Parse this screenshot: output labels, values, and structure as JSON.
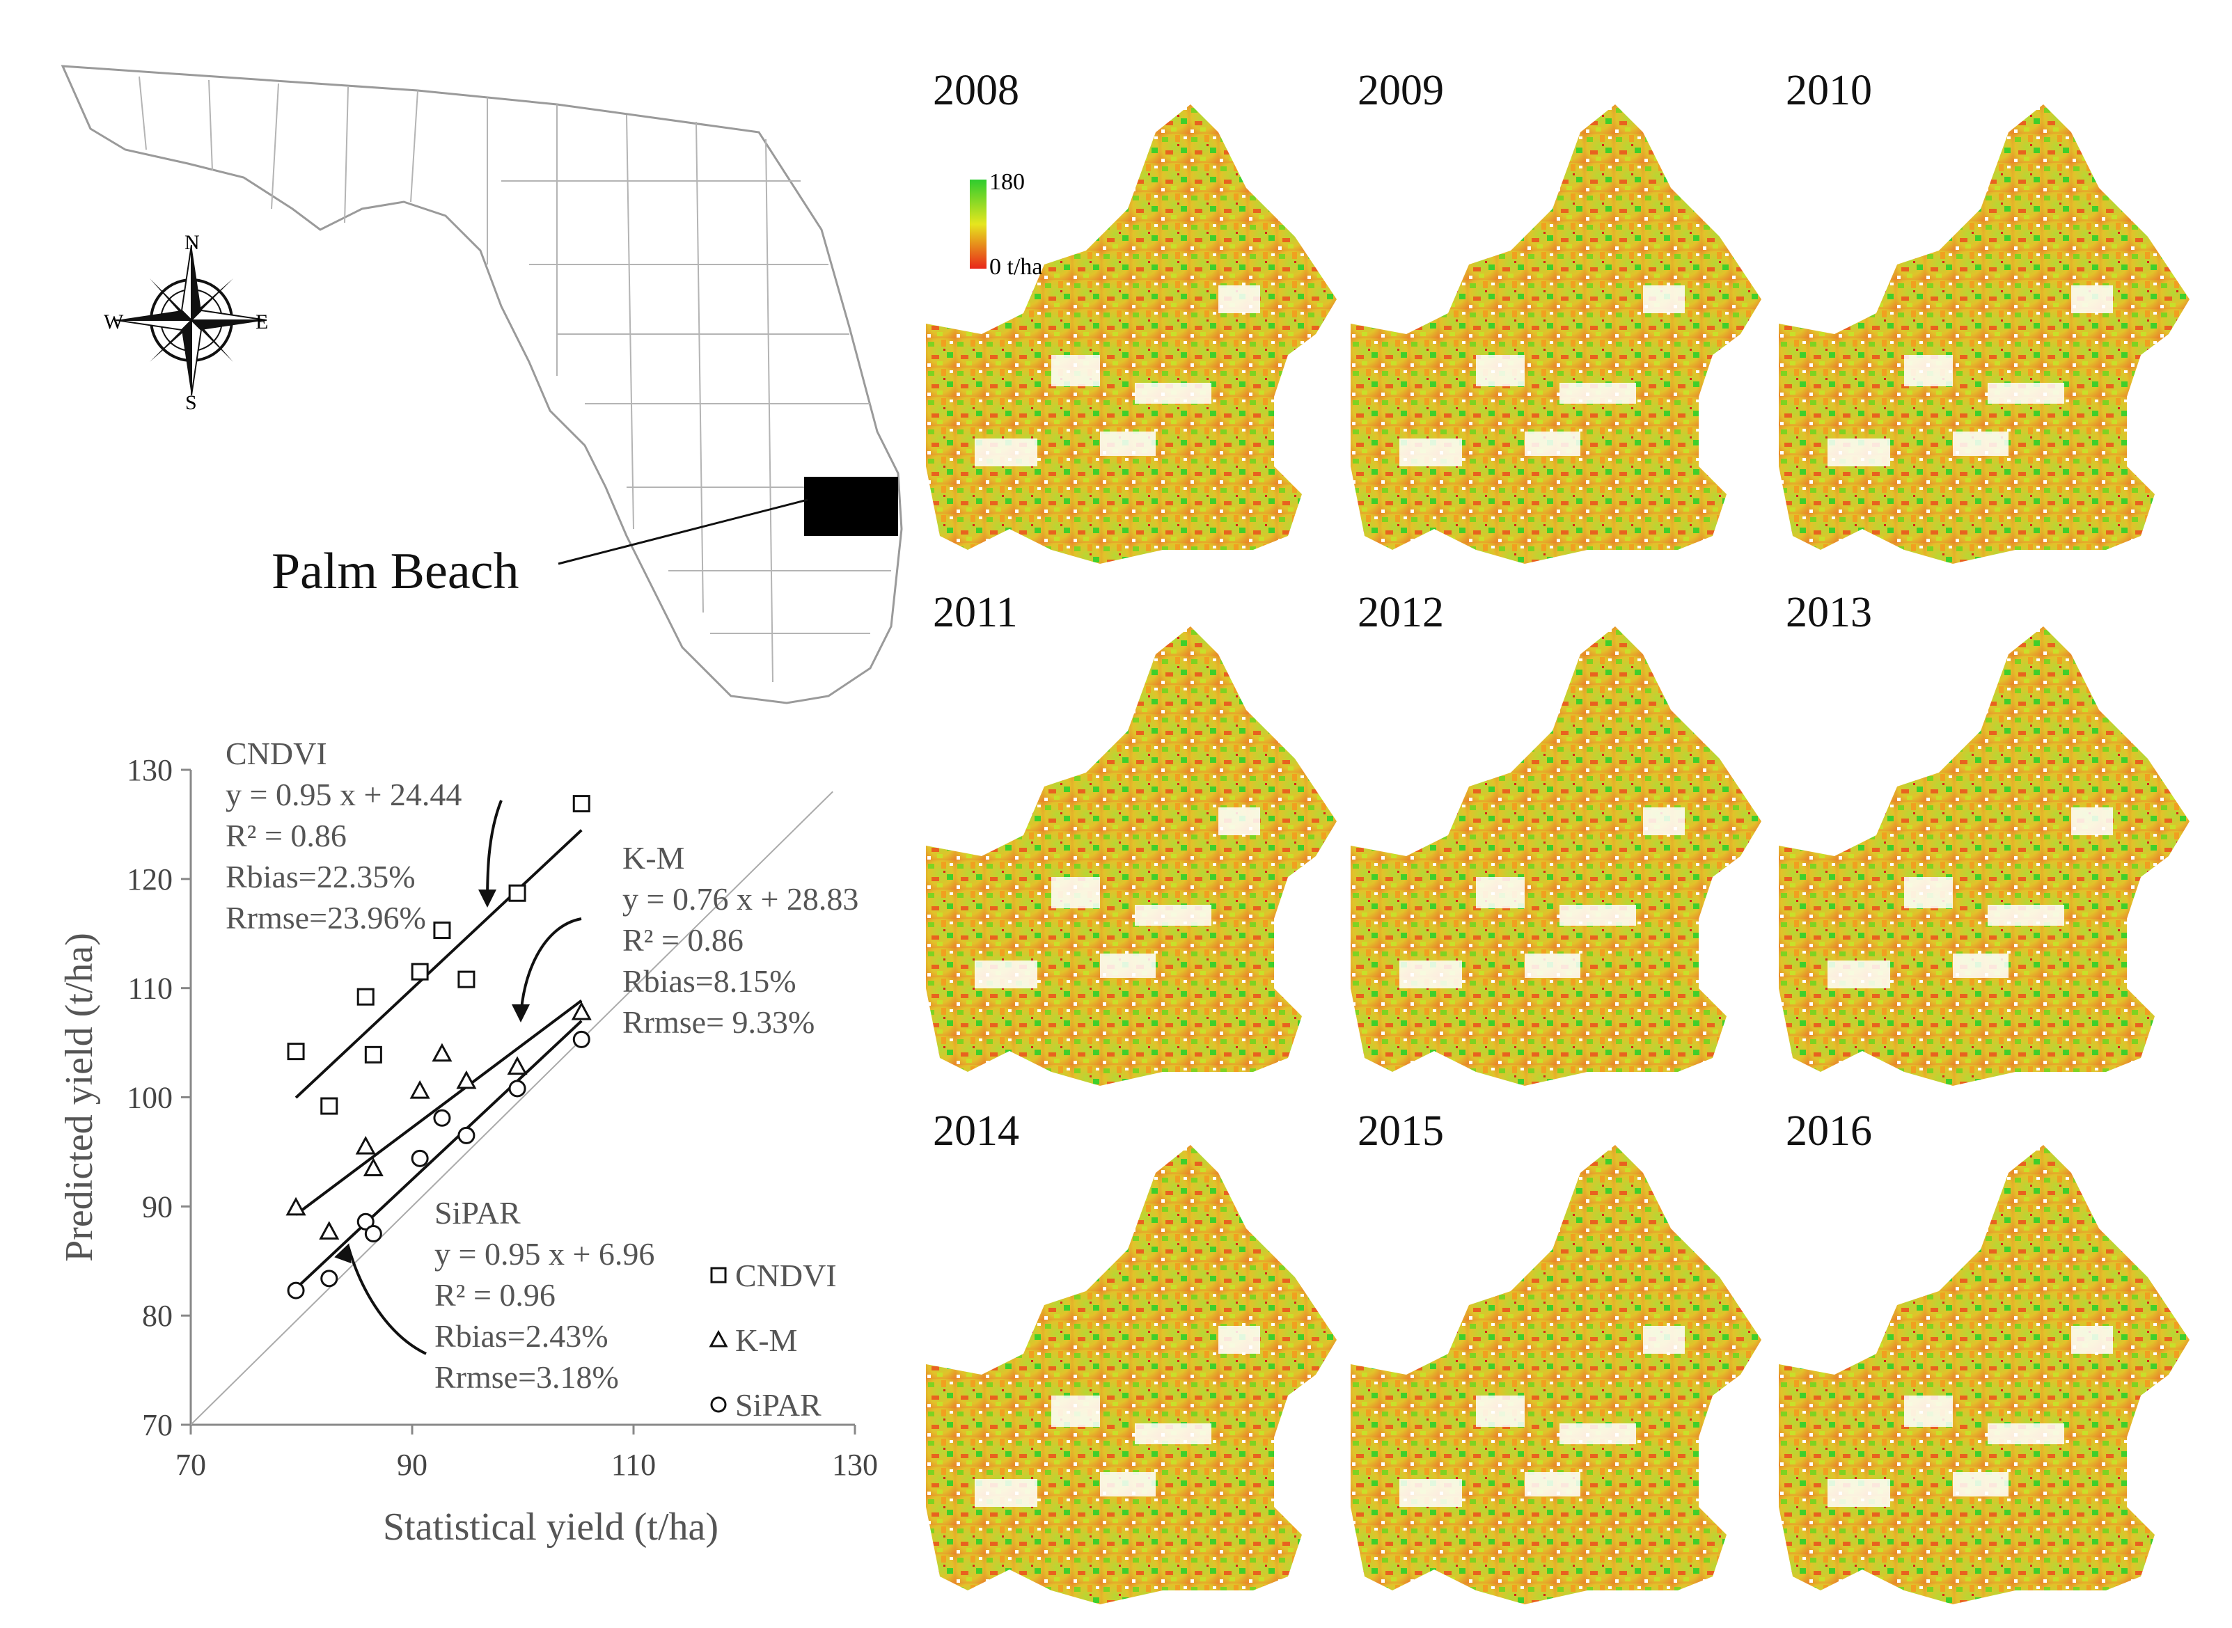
{
  "map": {
    "county_label": "Palm Beach",
    "compass": {
      "n": "N",
      "s": "S",
      "e": "E",
      "w": "W"
    }
  },
  "legend_scale": {
    "max_label": "180",
    "min_label": "0 t/ha",
    "high_color": "#2ecc2e",
    "low_color": "#e8261a"
  },
  "year_panels": [
    {
      "year": "2008"
    },
    {
      "year": "2009"
    },
    {
      "year": "2010"
    },
    {
      "year": "2011"
    },
    {
      "year": "2012"
    },
    {
      "year": "2013"
    },
    {
      "year": "2014"
    },
    {
      "year": "2015"
    },
    {
      "year": "2016"
    }
  ],
  "chart_data": {
    "type": "scatter",
    "xlabel": "Statistical yield (t/ha)",
    "ylabel": "Predicted yield (t/ha)",
    "xlim": [
      70,
      130
    ],
    "ylim": [
      70,
      130
    ],
    "x_ticks": [
      "70",
      "90",
      "110",
      "130"
    ],
    "y_ticks": [
      "70",
      "80",
      "90",
      "100",
      "110",
      "120",
      "130"
    ],
    "one_to_one_line": true,
    "legend_position": "bottom-right",
    "series": [
      {
        "name": "CNDVI",
        "marker": "square",
        "x": [
          79.5,
          82.5,
          85.8,
          86.5,
          90.7,
          92.7,
          94.9,
          99.5,
          105.3
        ],
        "y": [
          104.2,
          99.2,
          109.2,
          103.9,
          111.5,
          115.3,
          110.8,
          118.7,
          126.9
        ],
        "fit": {
          "slope": 0.95,
          "intercept": 24.44,
          "x_range": [
            79.5,
            105.3
          ]
        },
        "annotation": [
          "CNDVI",
          "y = 0.95 x + 24.44",
          "R² = 0.86",
          "Rbias=22.35%",
          "Rrmse=23.96%"
        ]
      },
      {
        "name": "K-M",
        "marker": "triangle",
        "x": [
          79.5,
          82.5,
          85.8,
          86.5,
          90.7,
          92.7,
          94.9,
          99.5,
          105.3
        ],
        "y": [
          89.9,
          87.7,
          95.5,
          93.5,
          100.6,
          104.0,
          101.5,
          102.8,
          107.8
        ],
        "fit": {
          "slope": 0.76,
          "intercept": 28.83,
          "x_range": [
            79.5,
            105.3
          ]
        },
        "annotation": [
          "K-M",
          "y = 0.76 x + 28.83",
          "R² = 0.86",
          "Rbias=8.15%",
          "Rrmse= 9.33%"
        ]
      },
      {
        "name": "SiPAR",
        "marker": "circle",
        "x": [
          79.5,
          82.5,
          85.8,
          86.5,
          90.7,
          92.7,
          94.9,
          99.5,
          105.3
        ],
        "y": [
          82.3,
          83.4,
          88.6,
          87.5,
          94.4,
          98.1,
          96.5,
          100.8,
          105.3
        ],
        "fit": {
          "slope": 0.95,
          "intercept": 6.96,
          "x_range": [
            79.5,
            105.3
          ]
        },
        "annotation": [
          "SiPAR",
          "y = 0.95 x + 6.96",
          "R² = 0.96",
          "Rbias=2.43%",
          "Rrmse=3.18%"
        ]
      }
    ]
  }
}
